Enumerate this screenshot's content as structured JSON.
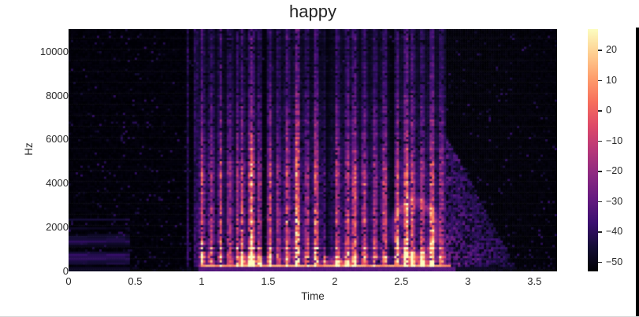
{
  "figure": {
    "background": "#ffffff",
    "edge_strip_color": "#000000"
  },
  "title": {
    "text": "happy"
  },
  "axes": {
    "xlabel": "Time",
    "ylabel": "Hz",
    "x_tick_labels": [
      "0",
      "0.5",
      "1",
      "1.5",
      "2",
      "2.5",
      "3",
      "3.5"
    ],
    "x_tick_values": [
      0,
      0.5,
      1,
      1.5,
      2,
      2.5,
      3,
      3.5
    ],
    "y_tick_labels": [
      "0",
      "2000",
      "4000",
      "6000",
      "8000",
      "10000"
    ],
    "y_tick_values": [
      0,
      2000,
      4000,
      6000,
      8000,
      10000
    ],
    "tick_color": "#2b2b2b"
  },
  "colorbar": {
    "tick_labels": [
      "20",
      "10",
      "0",
      "−10",
      "−20",
      "−30",
      "−40",
      "−50"
    ],
    "tick_values": [
      20,
      10,
      0,
      -10,
      -20,
      -30,
      -40,
      -50
    ]
  },
  "chart_data": {
    "type": "heatmap",
    "subtype": "audio-spectrogram",
    "title": "happy",
    "xlabel": "Time",
    "ylabel": "Hz",
    "x_range": [
      0,
      3.67
    ],
    "y_range": [
      0,
      11025
    ],
    "x_ticks": [
      0,
      0.5,
      1,
      1.5,
      2,
      2.5,
      3,
      3.5
    ],
    "y_ticks": [
      0,
      2000,
      4000,
      6000,
      8000,
      10000
    ],
    "grid": false,
    "legend": false,
    "color_scale": {
      "colormap": "magma",
      "vmin_db": -53,
      "vmax_db": 27,
      "colorbar_ticks_db": [
        20,
        10,
        0,
        -10,
        -20,
        -30,
        -40,
        -50
      ],
      "magma_stops": [
        [
          0,
          0,
          4
        ],
        [
          20,
          13,
          53
        ],
        [
          59,
          15,
          112
        ],
        [
          101,
          26,
          128
        ],
        [
          140,
          41,
          129
        ],
        [
          183,
          55,
          121
        ],
        [
          222,
          73,
          104
        ],
        [
          247,
          111,
          92
        ],
        [
          254,
          159,
          109
        ],
        [
          254,
          207,
          145
        ],
        [
          252,
          253,
          191
        ]
      ]
    },
    "segments": [
      {
        "t_start": 0.0,
        "t_end": 0.88,
        "type": "silence",
        "level_db": -52
      },
      {
        "t_start": 0.88,
        "t_end": 1.0,
        "type": "onset-sparse",
        "level_db": -44
      },
      {
        "t_start": 1.0,
        "t_end": 2.84,
        "type": "voiced-speech",
        "level_db_low_freq": 18,
        "level_db_high_freq": -40
      },
      {
        "t_start": 2.84,
        "t_end": 3.33,
        "type": "decay-tail",
        "level_db": -34,
        "max_freq_hz": 6200
      },
      {
        "t_start": 3.33,
        "t_end": 3.67,
        "type": "silence",
        "level_db": -52
      }
    ],
    "stop_gaps_t": [
      1.47,
      1.94,
      2.43
    ],
    "accent_columns_t": [
      1.37,
      1.71,
      2.14,
      2.54
    ],
    "striation_period_s": 0.072,
    "harmonic_spacing_hz": 215,
    "bright_low_freq_blobs": [
      {
        "t": 1.37,
        "f_max_hz": 900,
        "peak_db": 18
      },
      {
        "t": 2.05,
        "f_max_hz": 800,
        "peak_db": 14
      },
      {
        "t": 2.66,
        "f_max_hz": 650,
        "peak_db": 24
      }
    ],
    "formant_ring": {
      "t_center": 2.6,
      "f_center_hz": 1900,
      "t_radius_s": 0.16,
      "f_radius_hz": 1250
    },
    "low_freq_noise_patch": {
      "t_end": 0.46,
      "f_max_hz": 2400,
      "level_db": -44
    }
  }
}
